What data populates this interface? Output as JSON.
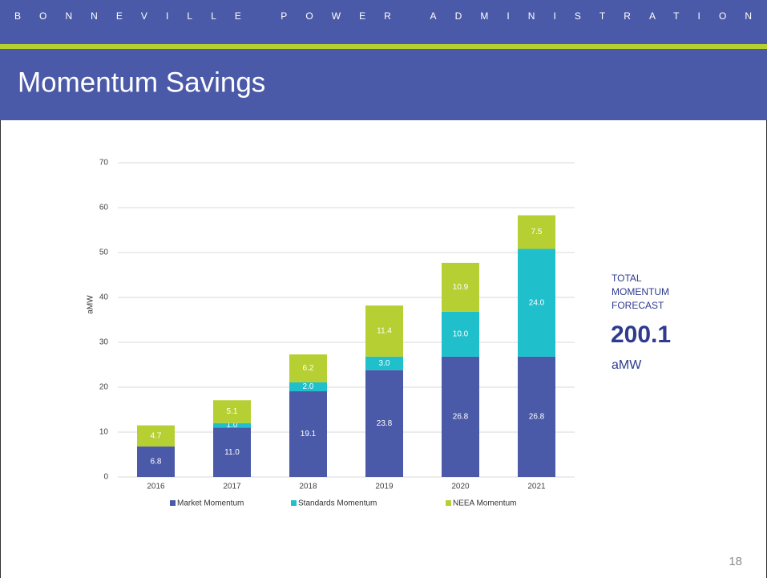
{
  "header": "BONNEVILLE POWER ADMINISTRATION",
  "slide_title": "Momentum Savings",
  "summary": {
    "lines": [
      "TOTAL",
      "MOMENTUM",
      "FORECAST"
    ],
    "total": "200.1",
    "unit": "aMW"
  },
  "page_number": "18",
  "chart_data": {
    "type": "stacked_bar",
    "y_label": "aMW",
    "categories": [
      "2016",
      "2017",
      "2018",
      "2019",
      "2020",
      "2021"
    ],
    "series": [
      {
        "name": "Market Momentum",
        "color": "#4b5aa8",
        "values": [
          6.8,
          11.0,
          19.1,
          23.8,
          26.8,
          26.8
        ],
        "value_labels": [
          "6.8",
          "11.0",
          "19.1",
          "23.8",
          "26.8",
          "26.8"
        ]
      },
      {
        "name": "Standards Momentum",
        "color": "#1fbfcc",
        "values": [
          0,
          1.0,
          2.0,
          3.0,
          10.0,
          24.0
        ],
        "value_labels": [
          null,
          "1.0",
          "2.0",
          "3.0",
          "10.0",
          "24.0"
        ]
      },
      {
        "name": "NEEA Momentum",
        "color": "#b6cf33",
        "values": [
          4.7,
          5.1,
          6.2,
          11.4,
          10.9,
          7.5
        ],
        "value_labels": [
          "4.7",
          "5.1",
          "6.2",
          "11.4",
          "10.9",
          "7.5"
        ]
      }
    ],
    "ylim": [
      0,
      70
    ],
    "yticks": [
      0,
      10,
      20,
      30,
      40,
      50,
      60,
      70
    ],
    "grid": true,
    "legend": "bottom"
  }
}
